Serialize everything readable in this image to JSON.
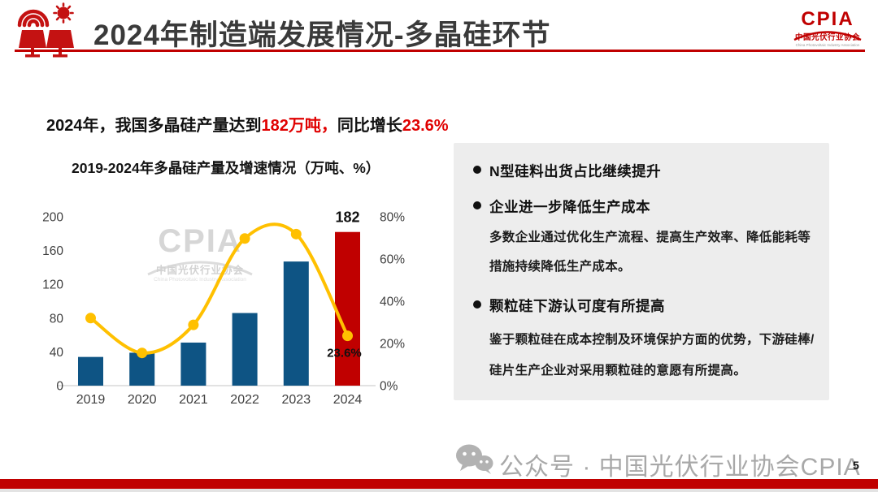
{
  "header": {
    "title": "2024年制造端发展情况-多晶硅环节",
    "page_number": "5"
  },
  "logo": {
    "brand": "CPIA",
    "org_cn": "中国光伏行业协会",
    "org_en": "China Photovoltaic Industry Association"
  },
  "key_finding": {
    "prefix": "2024年，我国多晶硅产量达到",
    "highlight1": "182万吨，",
    "mid": "同比增长",
    "highlight2": "23.6%"
  },
  "chart_data": {
    "type": "bar+line combo",
    "title": "2019-2024年多晶硅产量及增速情况（万吨、%）",
    "categories": [
      "2019",
      "2020",
      "2021",
      "2022",
      "2023",
      "2024"
    ],
    "series": [
      {
        "name": "多晶硅产量(万吨)",
        "type": "bar",
        "values": [
          34,
          39,
          51,
          86,
          147,
          182
        ],
        "bar_colors": [
          "#0e5484",
          "#0e5484",
          "#0e5484",
          "#0e5484",
          "#0e5484",
          "#c00000"
        ]
      },
      {
        "name": "增速(%)",
        "type": "line",
        "values": [
          32,
          15.5,
          28.8,
          69.7,
          71.8,
          23.6
        ],
        "color": "#ffc000"
      }
    ],
    "left_axis": {
      "ticks": [
        0,
        40,
        80,
        120,
        160,
        200
      ],
      "max": 200
    },
    "right_axis": {
      "ticks": [
        "0%",
        "20%",
        "40%",
        "60%",
        "80%"
      ],
      "max_pct": 80
    },
    "data_labels": {
      "bar_2024": "182",
      "line_2024": "23.6%"
    },
    "grid": "off",
    "legend": "none"
  },
  "watermark": {
    "brand": "CPIA",
    "org_cn": "中国光伏行业协会",
    "org_en": "China Photovoltaic Industry Association"
  },
  "panel": {
    "bullets": [
      {
        "title": "N型硅料出货占比继续提升",
        "body": []
      },
      {
        "title": "企业进一步降低生产成本",
        "body": [
          "多数企业通过优化生产流程、提高生产效率、降低能耗等",
          "措施持续降低生产成本。"
        ]
      },
      {
        "title": "颗粒硅下游认可度有所提高",
        "body": [
          "鉴于颗粒硅在成本控制及环境保护方面的优势，下游硅棒/",
          "硅片生产企业对采用颗粒硅的意愿有所提高。"
        ]
      }
    ]
  },
  "footer": {
    "watermark_text": "公众号 · 中国光伏行业协会CPIA"
  },
  "colors": {
    "accent_red": "#c00000",
    "bar_blue": "#0e5484",
    "line_gold": "#ffc000",
    "panel_bg": "#ededed",
    "title_gray": "#3a3a3a",
    "footer_gray": "#a8a8a8",
    "watermark_gray": "#d6d6d6"
  }
}
